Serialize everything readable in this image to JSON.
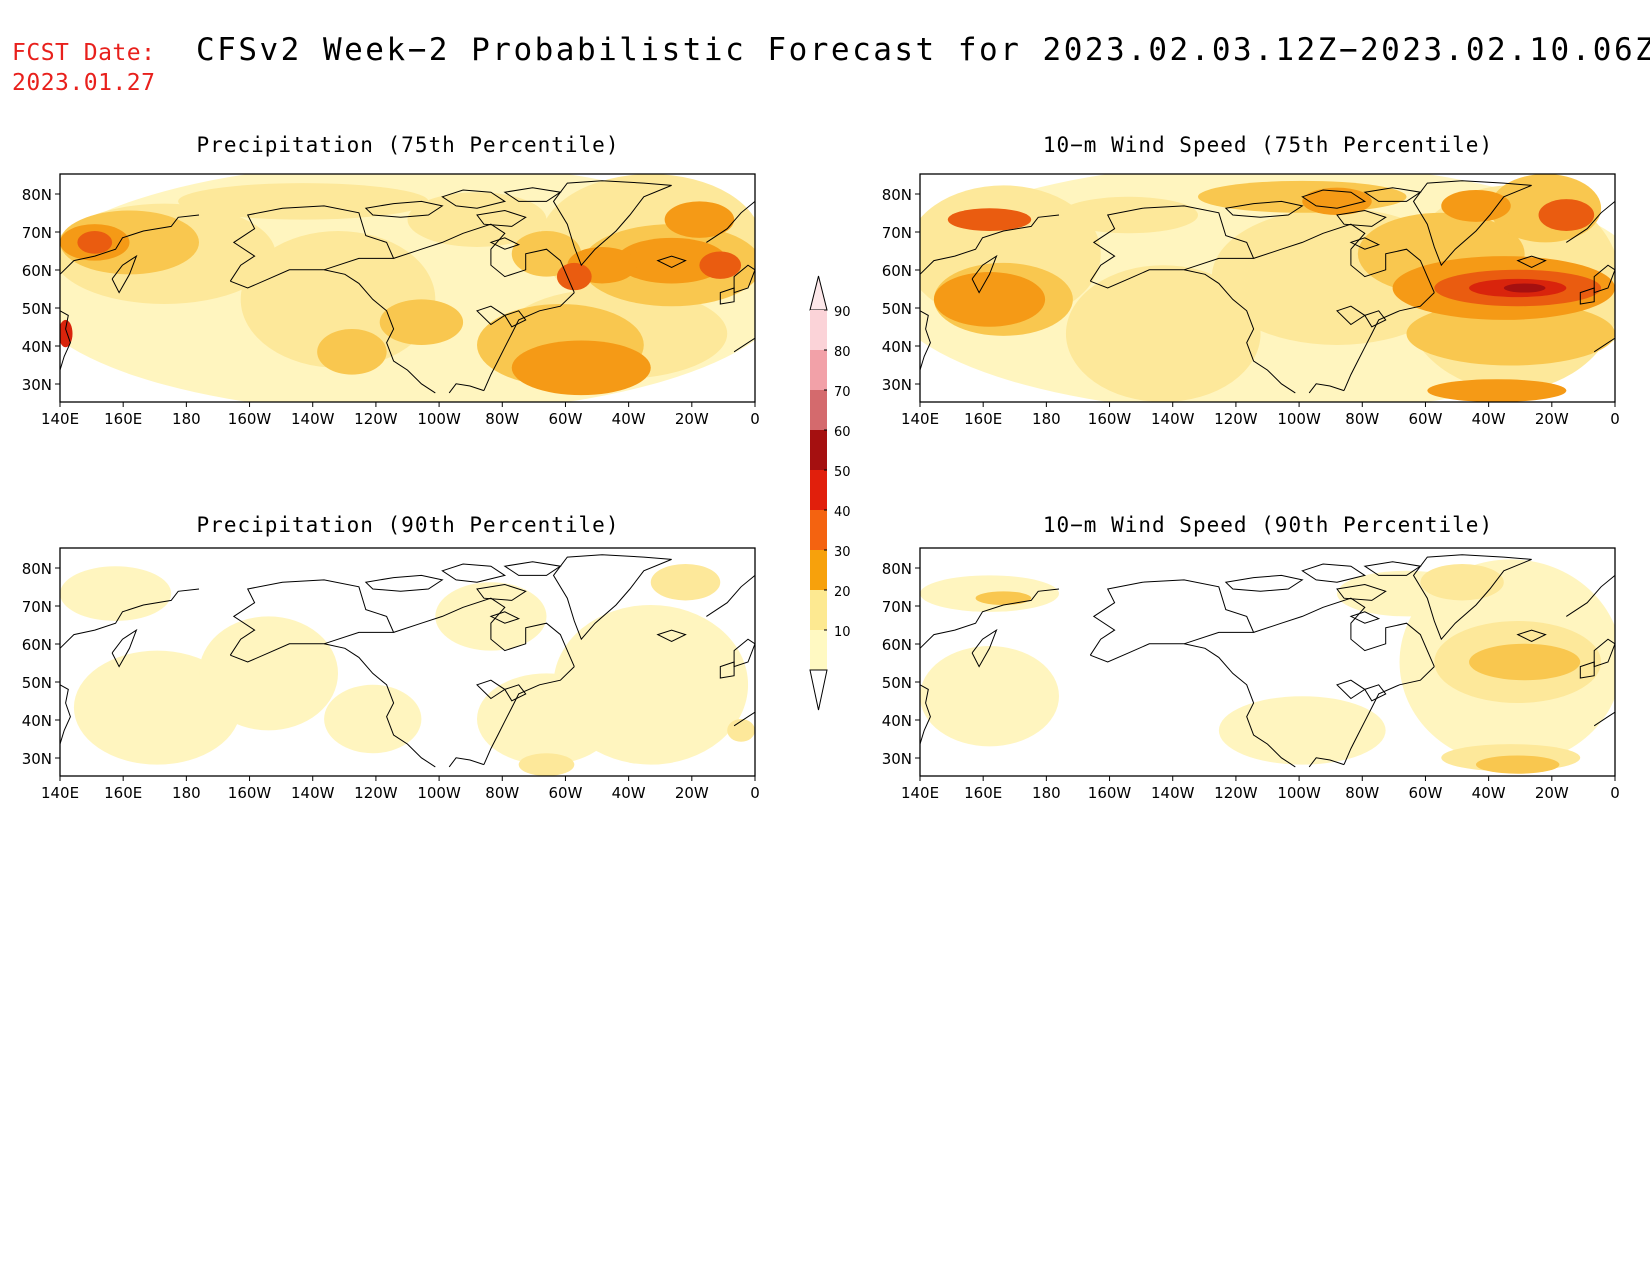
{
  "header": {
    "fcst_label": "FCST Date:",
    "fcst_date": "2023.01.27",
    "title": "CFSv2 Week−2 Probabilistic Forecast for 2023.02.03.12Z−2023.02.10.06Z"
  },
  "axes": {
    "lat_labels": [
      "80N",
      "70N",
      "60N",
      "50N",
      "40N",
      "30N"
    ],
    "lon_labels": [
      "140E",
      "160E",
      "180",
      "160W",
      "140W",
      "120W",
      "100W",
      "80W",
      "60W",
      "40W",
      "20W",
      "0"
    ]
  },
  "panels": [
    {
      "id": "precip75",
      "title": "Precipitation (75th Percentile)"
    },
    {
      "id": "wind75",
      "title": "10−m Wind Speed (75th Percentile)"
    },
    {
      "id": "precip90",
      "title": "Precipitation (90th Percentile)"
    },
    {
      "id": "wind90",
      "title": "10−m Wind Speed (90th Percentile)"
    }
  ],
  "colorbar": {
    "labels": [
      "90",
      "80",
      "70",
      "60",
      "50",
      "40",
      "30",
      "20",
      "10"
    ],
    "colors": [
      "#fbd3d8",
      "#f2a1a8",
      "#d46a6d",
      "#a51010",
      "#e11f0c",
      "#f46310",
      "#f7a10c",
      "#fde991",
      "#fff9c2"
    ]
  },
  "fill_colors": {
    "c10": "#fff5bf",
    "c20": "#fde89a",
    "c30": "#f9c74f",
    "c40": "#f59a16",
    "c50": "#ea5c10",
    "c60": "#d9240c",
    "c70": "#a51010"
  }
}
